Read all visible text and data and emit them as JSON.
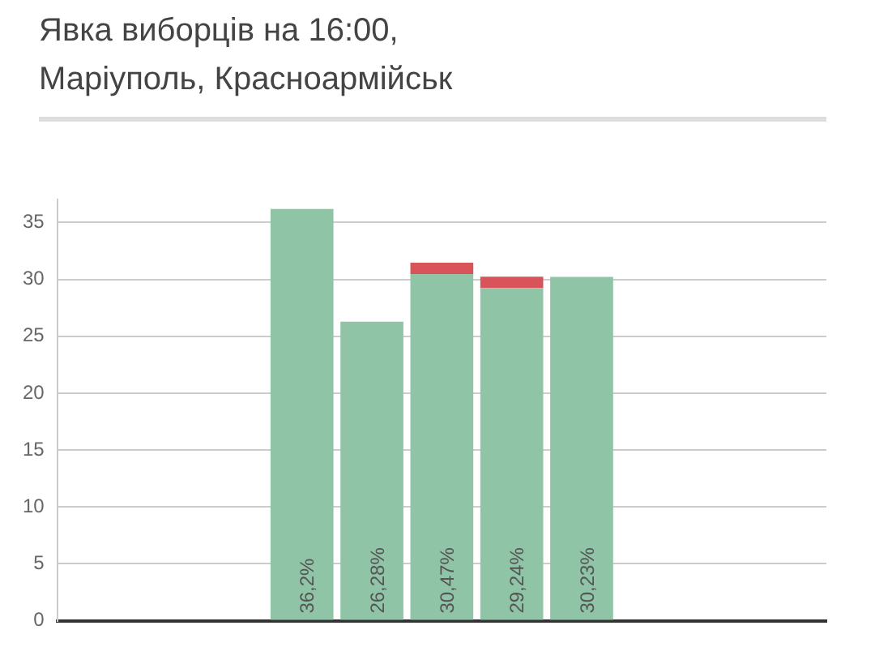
{
  "chart_data": {
    "type": "bar",
    "title": "Явка виборців на 16:00,\nМаріуполь, Красноармійськ",
    "categories": [
      null,
      null,
      null,
      null,
      null,
      null,
      null,
      null,
      null,
      null,
      null
    ],
    "stacked": true,
    "series": [
      {
        "color": "#8fc4a6",
        "values": [
          null,
          null,
          null,
          36.2,
          26.28,
          30.47,
          29.24,
          30.23,
          null,
          null,
          null
        ],
        "value_labels": [
          null,
          null,
          null,
          "36,2%",
          "26,28%",
          "30,47%",
          "29,24%",
          "30,23%",
          null,
          null,
          null
        ]
      },
      {
        "color": "#d9545a",
        "values": [
          null,
          null,
          null,
          null,
          null,
          1.0,
          1.0,
          null,
          null,
          null,
          null
        ]
      }
    ],
    "ylim": [
      0,
      37
    ],
    "yticks": [
      0,
      5,
      10,
      15,
      20,
      25,
      30,
      35
    ],
    "grid": "y"
  }
}
